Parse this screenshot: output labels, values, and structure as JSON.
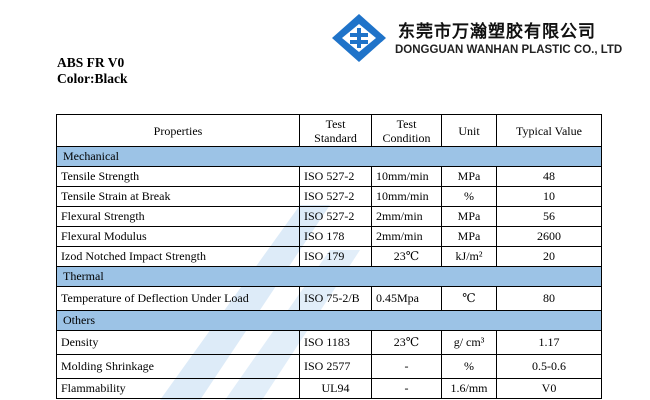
{
  "company": {
    "name_cn": "东莞市万瀚塑胶有限公司",
    "name_en": "DONGGUAN WANHAN PLASTIC CO., LTD"
  },
  "product": {
    "grade": "ABS FR V0",
    "color": "Color:Black"
  },
  "table": {
    "headers": {
      "properties": "Properties",
      "test_standard_1": "Test",
      "test_standard_2": "Standard",
      "test_condition_1": "Test",
      "test_condition_2": "Condition",
      "unit": "Unit",
      "typical_value": "Typical Value"
    },
    "sections": [
      {
        "title": "Mechanical",
        "rows": [
          {
            "property": "Tensile Strength",
            "standard": "ISO 527-2",
            "condition": "10mm/min",
            "unit": "MPa",
            "value": "48"
          },
          {
            "property": "Tensile Strain at Break",
            "standard": "ISO 527-2",
            "condition": "10mm/min",
            "unit": "%",
            "value": "10"
          },
          {
            "property": "Flexural Strength",
            "standard": "ISO 527-2",
            "condition": "2mm/min",
            "unit": "MPa",
            "value": "56"
          },
          {
            "property": "Flexural Modulus",
            "standard": "ISO 178",
            "condition": "2mm/min",
            "unit": "MPa",
            "value": "2600"
          },
          {
            "property": "Izod Notched Impact Strength",
            "standard": "ISO 179",
            "condition": "23℃",
            "unit": "kJ/m²",
            "value": "20"
          }
        ]
      },
      {
        "title": "Thermal",
        "rows": [
          {
            "property": "Temperature of Deflection Under Load",
            "standard": "ISO 75-2/B",
            "condition": "0.45Mpa",
            "unit": "℃",
            "value": "80"
          }
        ]
      },
      {
        "title": "Others",
        "rows": [
          {
            "property": "Density",
            "standard": "ISO 1183",
            "condition": "23℃",
            "unit": "g/ cm³",
            "value": "1.17"
          },
          {
            "property": "Molding Shrinkage",
            "standard": "ISO 2577",
            "condition": "-",
            "unit": "%",
            "value": "0.5-0.6"
          },
          {
            "property": "Flammability",
            "standard": "UL94",
            "condition": "-",
            "unit": "1.6/mm",
            "value": "V0"
          }
        ]
      }
    ]
  },
  "colors": {
    "section_fill": "#9cc3e6",
    "logo_blue": "#1f73c9",
    "watermark": "#bcd6f0"
  }
}
